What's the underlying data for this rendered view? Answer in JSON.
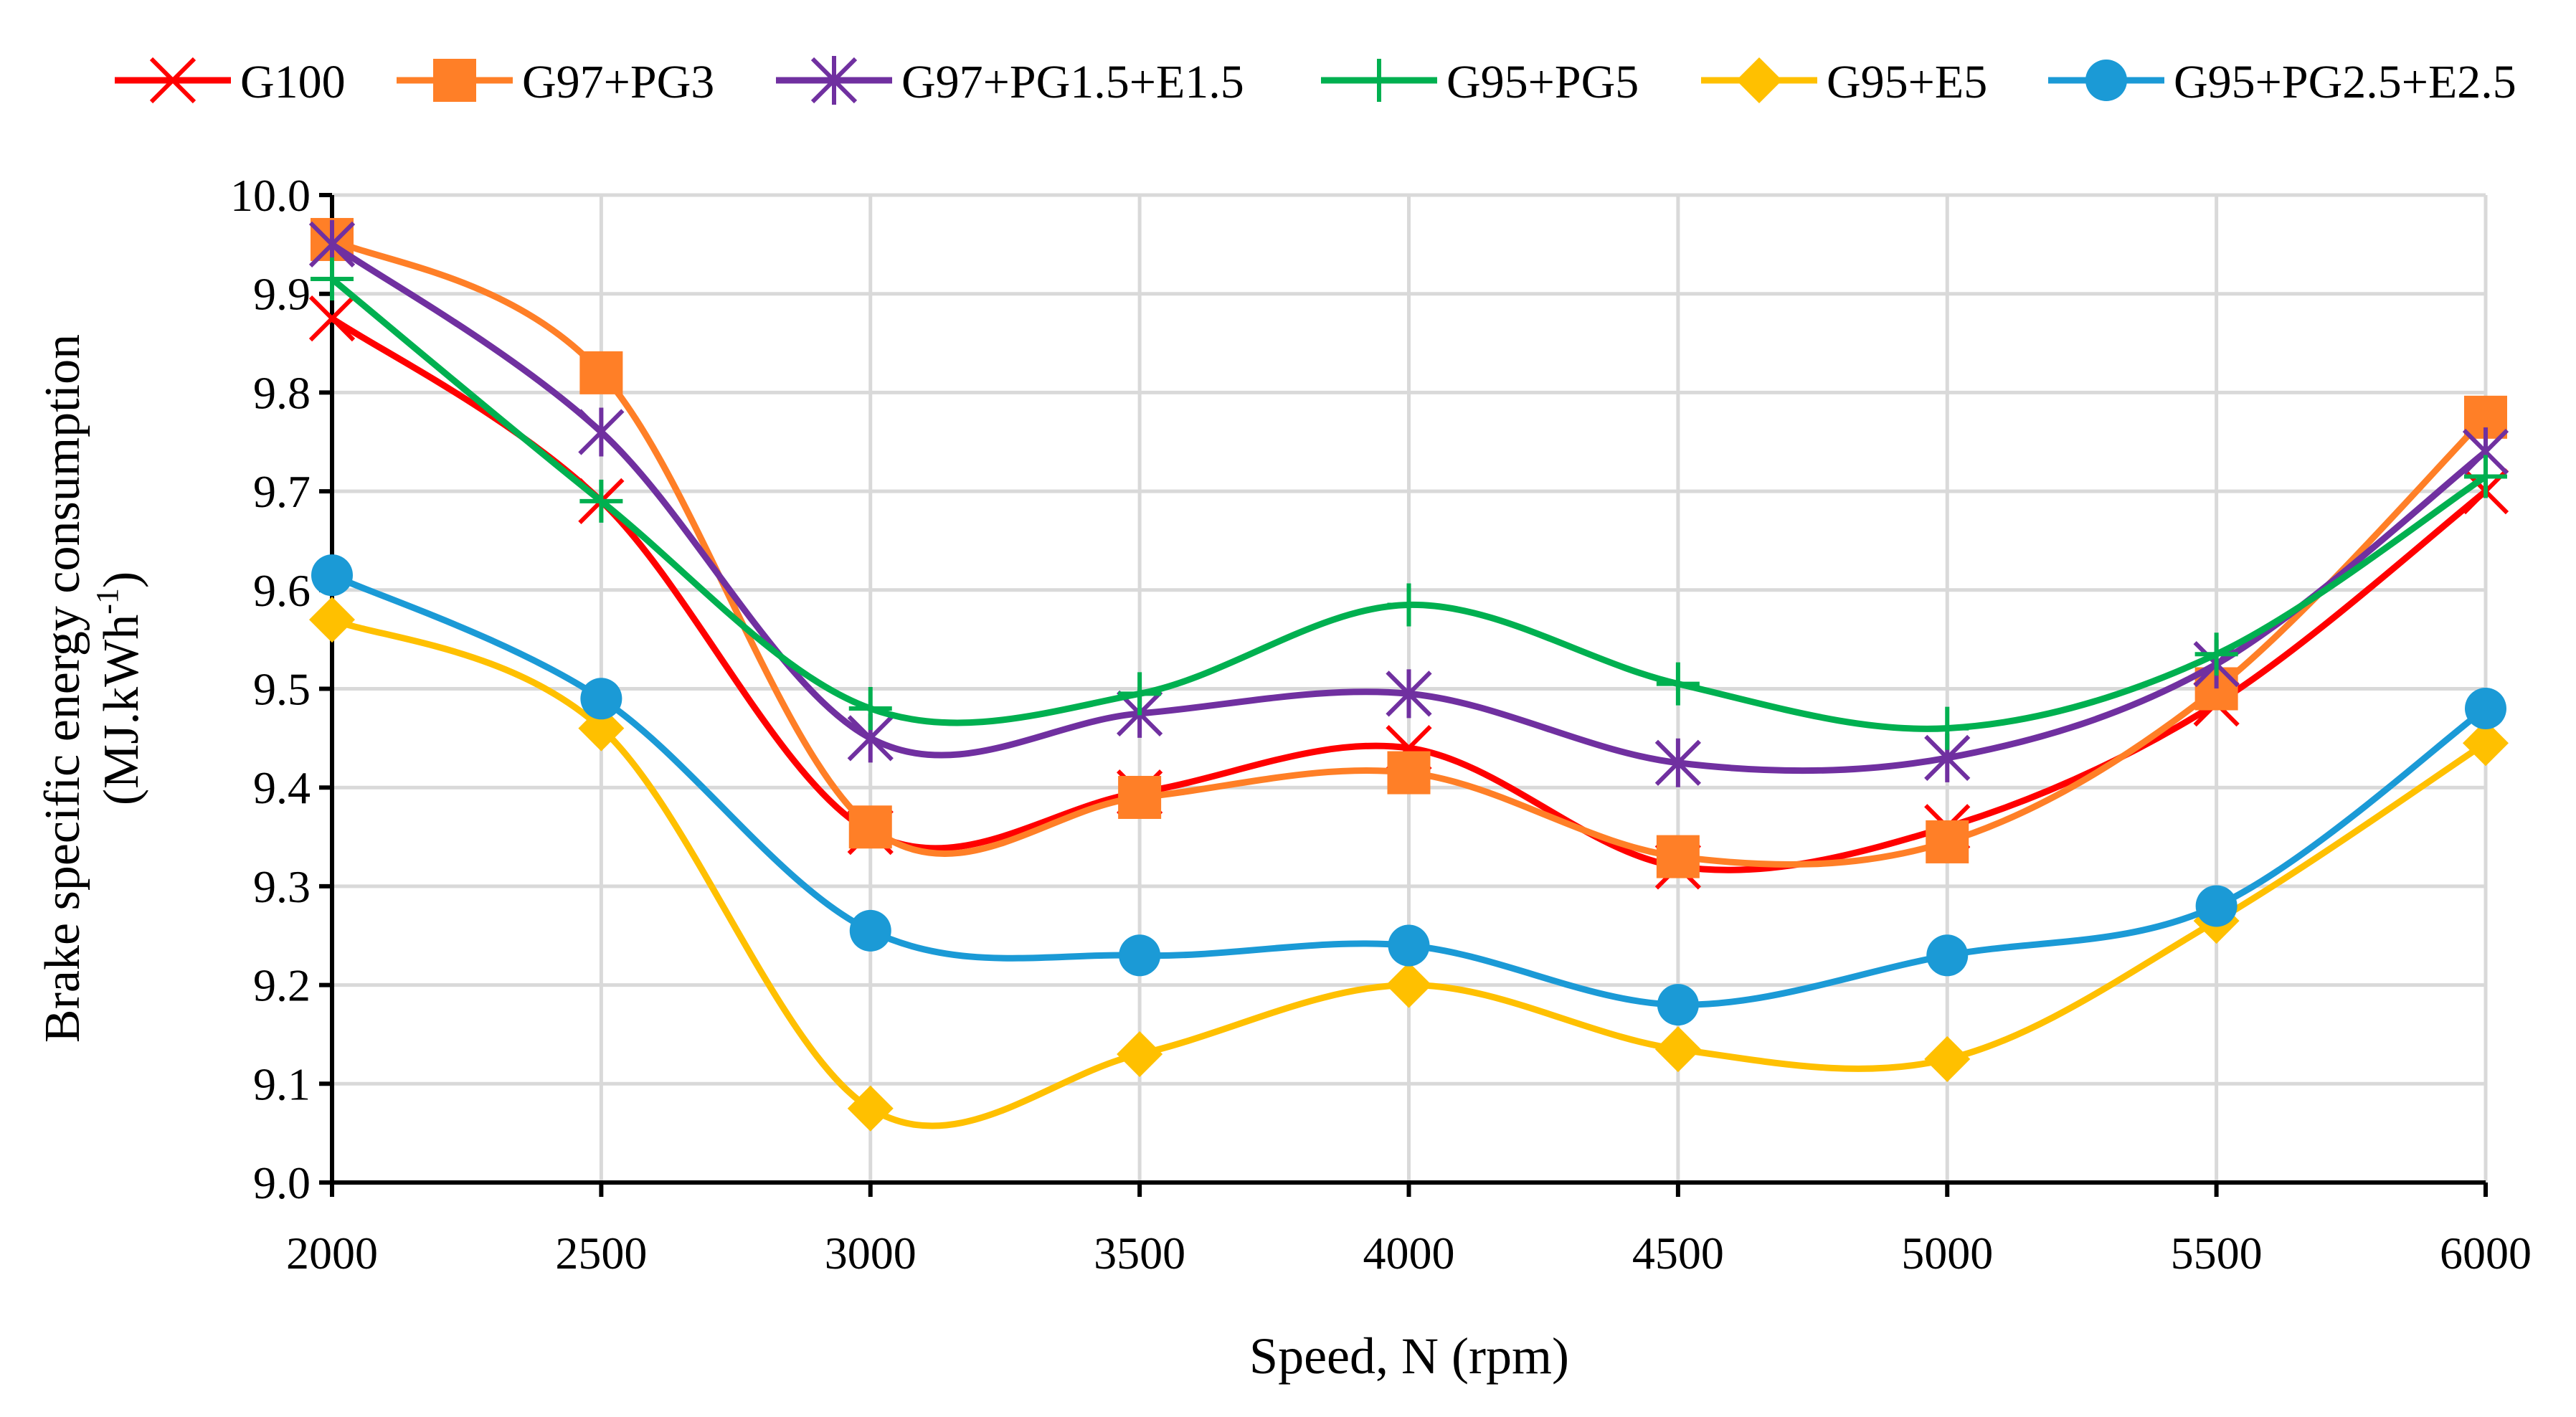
{
  "chart_data": {
    "type": "line",
    "title": "",
    "xlabel": "Speed, N (rpm)",
    "ylabel_line1": "Brake specific energy consumption",
    "ylabel_line2": "(MJ.kWh",
    "ylabel_sup": "-1",
    "ylabel_end": ")",
    "x": [
      2000,
      2500,
      3000,
      3500,
      4000,
      4500,
      5000,
      5500,
      6000
    ],
    "xlim": [
      2000,
      6000
    ],
    "ylim": [
      9.0,
      10.0
    ],
    "yticks": [
      "9.0",
      "9.1",
      "9.2",
      "9.3",
      "9.4",
      "9.5",
      "9.6",
      "9.7",
      "9.8",
      "9.9",
      "10.0"
    ],
    "xticks": [
      "2000",
      "2500",
      "3000",
      "3500",
      "4000",
      "4500",
      "5000",
      "5500",
      "6000"
    ],
    "grid": true,
    "legend_position": "top",
    "smooth": true,
    "series": [
      {
        "name": "G100",
        "color": "#ff0000",
        "marker": "x",
        "values": [
          9.875,
          9.69,
          9.355,
          9.395,
          9.44,
          9.32,
          9.36,
          9.485,
          9.7
        ]
      },
      {
        "name": "G97+PG3",
        "color": "#ff7f27",
        "marker": "square",
        "values": [
          9.955,
          9.82,
          9.36,
          9.39,
          9.415,
          9.33,
          9.345,
          9.5,
          9.775
        ]
      },
      {
        "name": "G97+PG1.5+E1.5",
        "color": "#7030a0",
        "marker": "asterisk",
        "values": [
          9.95,
          9.76,
          9.45,
          9.475,
          9.495,
          9.425,
          9.43,
          9.525,
          9.74
        ]
      },
      {
        "name": "G95+PG5",
        "color": "#00b050",
        "marker": "plus",
        "values": [
          9.915,
          9.69,
          9.48,
          9.495,
          9.585,
          9.505,
          9.46,
          9.535,
          9.715
        ]
      },
      {
        "name": "G95+E5",
        "color": "#ffc000",
        "marker": "diamond",
        "values": [
          9.57,
          9.46,
          9.075,
          9.13,
          9.2,
          9.135,
          9.125,
          9.265,
          9.445
        ]
      },
      {
        "name": "G95+PG2.5+E2.5",
        "color": "#1b9ad6",
        "marker": "circle",
        "values": [
          9.615,
          9.49,
          9.255,
          9.23,
          9.24,
          9.18,
          9.23,
          9.28,
          9.48
        ]
      }
    ]
  }
}
